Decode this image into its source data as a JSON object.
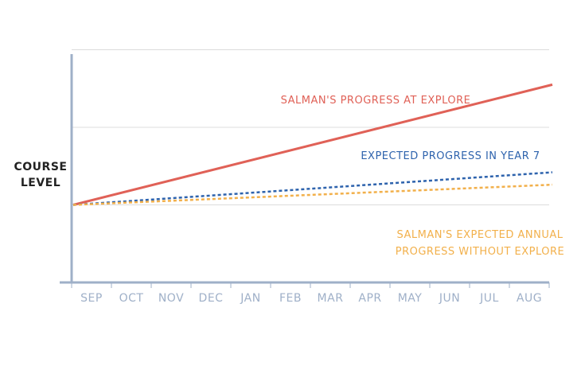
{
  "chart_data": {
    "type": "line",
    "categories": [
      "SEP",
      "OCT",
      "NOV",
      "DEC",
      "JAN",
      "FEB",
      "MAR",
      "APR",
      "MAY",
      "JUN",
      "JUL",
      "AUG"
    ],
    "ylabel": [
      "COURSE",
      "LEVEL"
    ],
    "xlabel": "",
    "title": "",
    "ylim": [
      0,
      4
    ],
    "y_ticks": [
      0,
      1,
      2,
      3
    ],
    "grid": true,
    "series": [
      {
        "name": "SALMAN'S PROGRESS AT EXPLORE",
        "style": "solid",
        "color": "#e06157",
        "start": 1.0,
        "end": 2.55
      },
      {
        "name": "EXPECTED PROGRESS IN YEAR 7",
        "style": "dashed",
        "color": "#2e63ad",
        "start": 1.0,
        "end": 1.42
      },
      {
        "name": "SALMAN'S EXPECTED ANNUAL PROGRESS WITHOUT EXPLORE",
        "name_lines": [
          "SALMAN'S EXPECTED ANNUAL",
          "PROGRESS WITHOUT EXPLORE"
        ],
        "style": "dashed",
        "color": "#f2b04b",
        "start": 1.0,
        "end": 1.26
      }
    ]
  },
  "colors": {
    "axis": "#9fb0c8",
    "grid": "#dcdcdc",
    "ylabel": "#222222"
  }
}
